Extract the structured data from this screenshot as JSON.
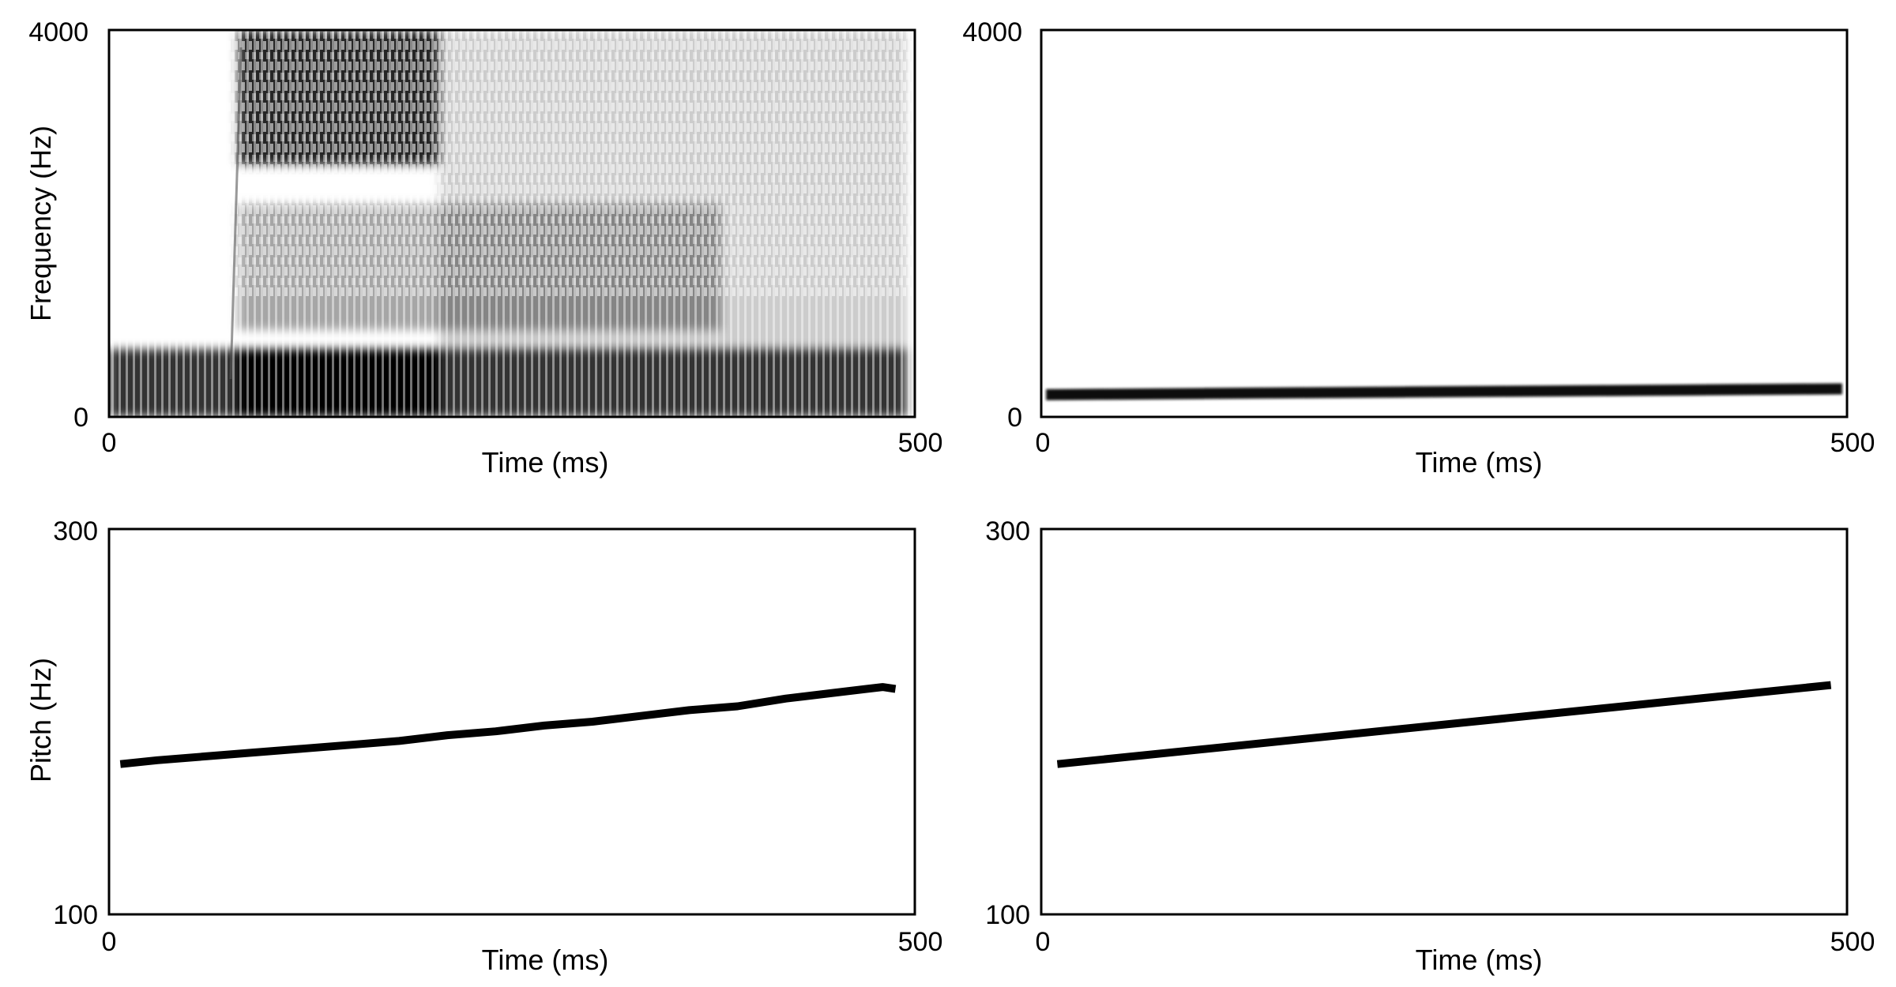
{
  "chart_data": [
    {
      "type": "heatmap",
      "subtype": "spectrogram",
      "description_of_content": "",
      "xlabel": "Time (ms)",
      "ylabel": "Frequency (Hz)",
      "xlim": [
        0,
        500
      ],
      "ylim": [
        0,
        4000
      ],
      "x_ticks": [
        "0",
        "500"
      ],
      "y_ticks": [
        "0",
        "4000"
      ],
      "colormap": "grayscale (dark = high energy)",
      "energy_regions": [
        {
          "t_start": 0,
          "t_end": 495,
          "f_low": 0,
          "f_high": 700,
          "intensity": 0.8
        },
        {
          "t_start": 80,
          "t_end": 205,
          "f_low": 0,
          "f_high": 700,
          "intensity": 1.0
        },
        {
          "t_start": 80,
          "t_end": 205,
          "f_low": 2600,
          "f_high": 4000,
          "intensity": 0.85
        },
        {
          "t_start": 80,
          "t_end": 380,
          "f_low": 900,
          "f_high": 2200,
          "intensity": 0.35
        },
        {
          "t_start": 205,
          "t_end": 495,
          "f_low": 700,
          "f_high": 4000,
          "intensity": 0.2
        }
      ]
    },
    {
      "type": "heatmap",
      "subtype": "spectrogram",
      "xlabel": "Time (ms)",
      "ylabel": "",
      "xlim": [
        0,
        500
      ],
      "ylim": [
        0,
        4000
      ],
      "x_ticks": [
        "0",
        "500"
      ],
      "y_ticks": [
        "0",
        "4000"
      ],
      "colormap": "grayscale (dark = high energy)",
      "tone": {
        "t": [
          3,
          497
        ],
        "f": [
          230,
          290
        ],
        "intensity": 1.0
      }
    },
    {
      "type": "line",
      "xlabel": "Time (ms)",
      "ylabel": "Pitch (Hz)",
      "xlim": [
        0,
        500
      ],
      "ylim": [
        100,
        300
      ],
      "x_ticks": [
        "0",
        "500"
      ],
      "y_ticks": [
        "100",
        "300"
      ],
      "series": [
        {
          "x": [
            7,
            30,
            60,
            90,
            120,
            150,
            180,
            210,
            240,
            270,
            300,
            330,
            360,
            390,
            420,
            450,
            470,
            480,
            488
          ],
          "y": [
            178,
            180,
            182,
            184,
            186,
            188,
            190,
            193,
            195,
            198,
            200,
            203,
            206,
            208,
            212,
            215,
            217,
            218,
            217
          ]
        }
      ]
    },
    {
      "type": "line",
      "xlabel": "Time (ms)",
      "ylabel": "",
      "xlim": [
        0,
        500
      ],
      "ylim": [
        100,
        300
      ],
      "x_ticks": [
        "0",
        "500"
      ],
      "y_ticks": [
        "100",
        "300"
      ],
      "series": [
        {
          "x": [
            10,
            490
          ],
          "y": [
            178,
            219
          ]
        }
      ]
    }
  ]
}
